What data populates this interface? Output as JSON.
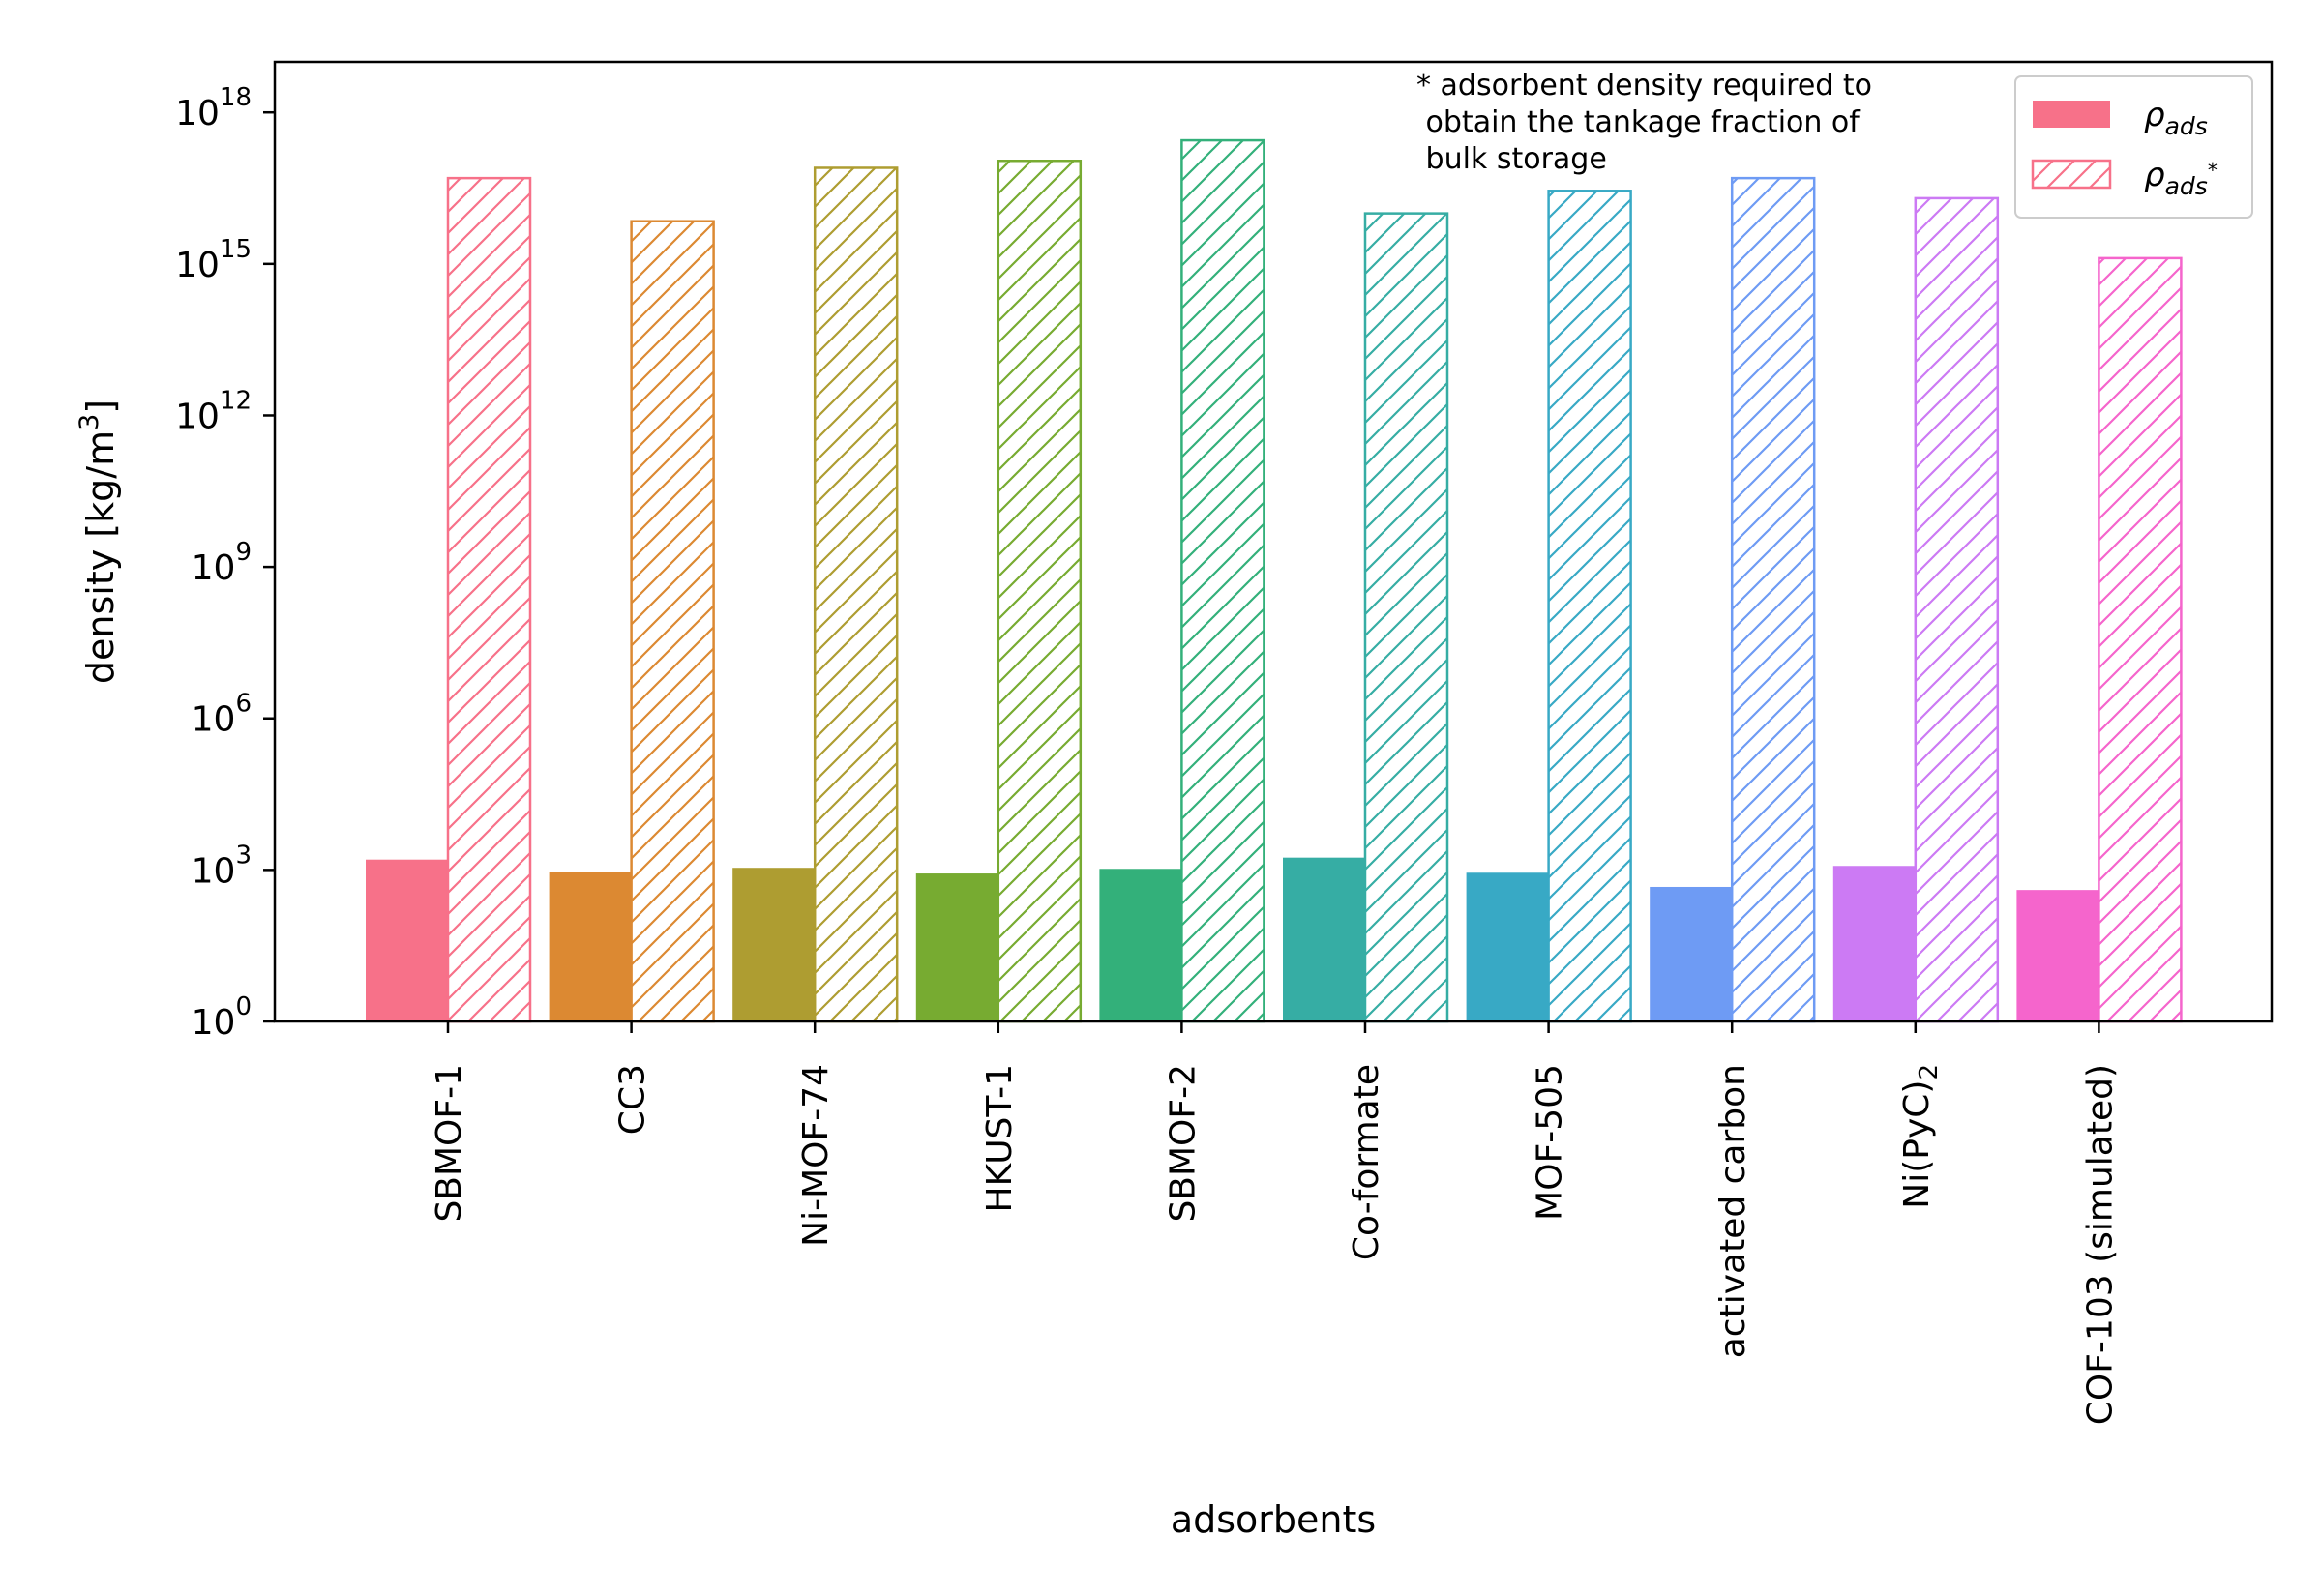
{
  "chart_data": {
    "type": "bar",
    "title": "",
    "xlabel": "adsorbents",
    "ylabel": "density [kg/m³]",
    "yscale": "log",
    "ylim": [
      1,
      1e+19
    ],
    "yticks": [
      {
        "value": 1,
        "base": "10",
        "exp": "0"
      },
      {
        "value": 1000.0,
        "base": "10",
        "exp": "3"
      },
      {
        "value": 1000000.0,
        "base": "10",
        "exp": "6"
      },
      {
        "value": 1000000000.0,
        "base": "10",
        "exp": "9"
      },
      {
        "value": 1000000000000.0,
        "base": "10",
        "exp": "12"
      },
      {
        "value": 1000000000000000.0,
        "base": "10",
        "exp": "15"
      },
      {
        "value": 1e+18,
        "base": "10",
        "exp": "18"
      }
    ],
    "categories": [
      {
        "text": "SBMOF-1",
        "sub": ""
      },
      {
        "text": "CC3",
        "sub": ""
      },
      {
        "text": "Ni-MOF-74",
        "sub": ""
      },
      {
        "text": "HKUST-1",
        "sub": ""
      },
      {
        "text": "SBMOF-2",
        "sub": ""
      },
      {
        "text": "Co-formate",
        "sub": ""
      },
      {
        "text": "MOF-505",
        "sub": ""
      },
      {
        "text": "activated carbon",
        "sub": ""
      },
      {
        "text": "Ni(PyC)",
        "sub": "2"
      },
      {
        "text": "COF-103 (simulated)",
        "sub": ""
      }
    ],
    "colors": [
      "#f77189",
      "#dc8932",
      "#ae9d31",
      "#77ab31",
      "#33b07a",
      "#36ada4",
      "#38a9c5",
      "#6e9bf4",
      "#cc7af4",
      "#f565cc"
    ],
    "series": [
      {
        "key": "rho_ads",
        "legend_base": "ρ",
        "legend_sub": "ads",
        "legend_sup": "",
        "fill": "solid",
        "values": [
          1600,
          900,
          1100,
          850,
          1050,
          1750,
          880,
          460,
          1200,
          400
        ]
      },
      {
        "key": "rho_ads_star",
        "legend_base": "ρ",
        "legend_sub": "ads",
        "legend_sup": "*",
        "fill": "hatched",
        "values": [
          5e+16,
          7000000000000000.0,
          8e+16,
          1.1e+17,
          2.8e+17,
          1e+16,
          2.8e+16,
          5e+16,
          2e+16,
          1300000000000000.0
        ]
      }
    ],
    "annotation": [
      "* adsorbent density required to",
      " obtain the tankage fraction of",
      " bulk storage"
    ],
    "legend_position": "top-right",
    "grid": false
  }
}
